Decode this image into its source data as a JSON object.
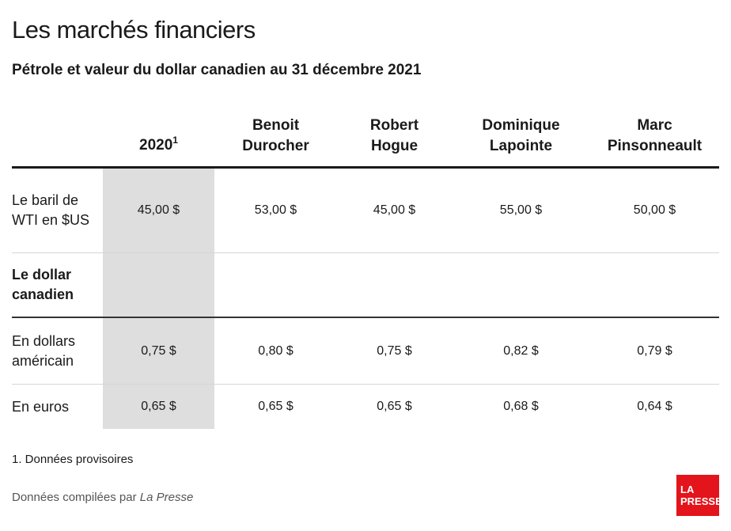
{
  "header": {
    "title": "Les marchés financiers",
    "subtitle": "Pétrole et valeur du dollar canadien au 31 décembre 2021"
  },
  "table": {
    "columns": [
      {
        "label_line1": "",
        "label_line2": "2020",
        "note": "1"
      },
      {
        "label_line1": "Benoit",
        "label_line2": "Durocher",
        "note": ""
      },
      {
        "label_line1": "Robert",
        "label_line2": "Hogue",
        "note": ""
      },
      {
        "label_line1": "Dominique",
        "label_line2": "Lapointe",
        "note": ""
      },
      {
        "label_line1": "Marc",
        "label_line2": "Pinsonneault",
        "note": ""
      }
    ],
    "rows": [
      {
        "label": "Le baril de WTI en $US",
        "values": [
          "45,00 $",
          "53,00 $",
          "45,00 $",
          "55,00 $",
          "50,00 $"
        ]
      },
      {
        "label": "Le dollar canadien",
        "values": [
          "",
          "",
          "",
          "",
          ""
        ]
      },
      {
        "label": "En dollars américain",
        "values": [
          "0,75 $",
          "0,80 $",
          "0,75 $",
          "0,82 $",
          "0,79 $"
        ]
      },
      {
        "label": "En euros",
        "values": [
          "0,65 $",
          "0,65 $",
          "0,65 $",
          "0,68 $",
          "0,64 $"
        ]
      }
    ]
  },
  "footer": {
    "note": "1. Données provisoires",
    "credit_prefix": "Données compilées par",
    "credit_source": "La Presse",
    "logo_line1": "LA",
    "logo_line2": "PRESSE",
    "logo_color": "#e3141b"
  }
}
